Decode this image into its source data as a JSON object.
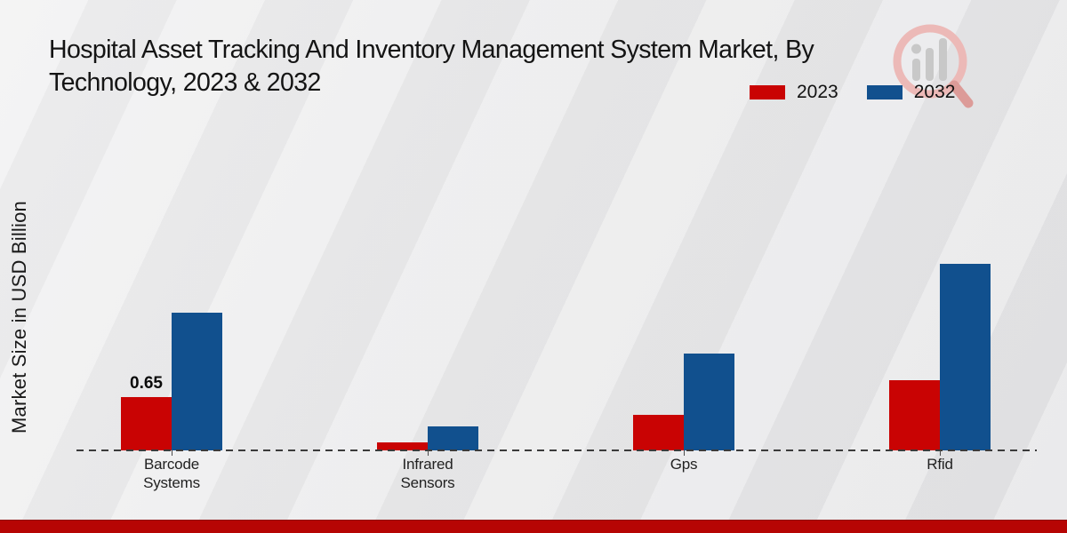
{
  "header": {
    "title_line1": "Hospital Asset Tracking And Inventory Management System Market, By",
    "title_line2": "Technology, 2023 & 2032"
  },
  "axis": {
    "ylabel": "Market Size in USD Billion"
  },
  "legend": {
    "items": [
      {
        "label": "2023",
        "color": "#c90303"
      },
      {
        "label": "2032",
        "color": "#11508e"
      }
    ]
  },
  "watermark": {
    "icon": "bar-chart-magnifier-logo",
    "circle_color": "#ecb9b7",
    "bar_color": "#c8c8c8",
    "handle_color": "#dc9b98"
  },
  "footer": {
    "bar_color": "#b60504"
  },
  "chart_data": {
    "type": "bar",
    "title": "Hospital Asset Tracking And Inventory Management System Market, By Technology, 2023 & 2032",
    "xlabel": "",
    "ylabel": "Market Size in USD Billion",
    "categories": [
      "Barcode Systems",
      "Infrared Sensors",
      "Gps",
      "Rfid"
    ],
    "series": [
      {
        "name": "2023",
        "color": "#c90303",
        "values": [
          0.65,
          0.1,
          0.44,
          0.86
        ],
        "value_labels": [
          "0.65",
          null,
          null,
          null
        ]
      },
      {
        "name": "2032",
        "color": "#11508e",
        "values": [
          1.69,
          0.29,
          1.18,
          2.28
        ],
        "value_labels": [
          null,
          null,
          null,
          null
        ]
      }
    ],
    "ylim": [
      0,
      2.5
    ],
    "grid": false,
    "baseline": "dashed zero line",
    "legend_position": "top-right"
  }
}
